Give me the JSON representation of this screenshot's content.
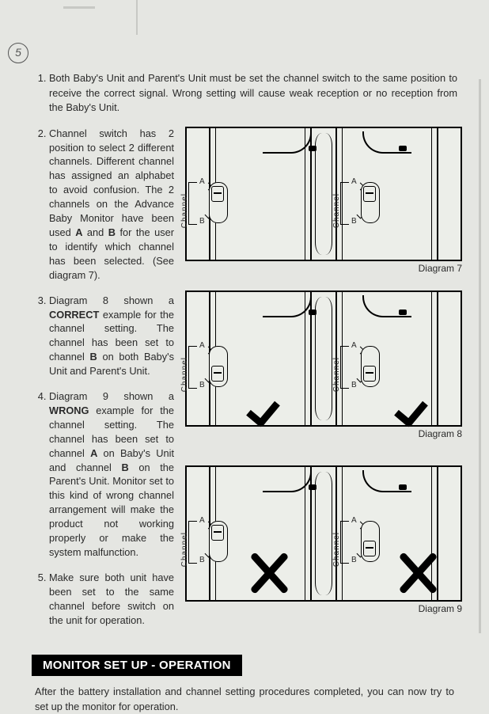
{
  "page_annotation": "5",
  "items": [
    {
      "text_parts": [
        "Both Baby's Unit and Parent's Unit must be set the channel switch to the same position to receive the correct signal. Wrong setting will cause weak reception or no reception from the Baby's Unit."
      ]
    },
    {
      "text_parts": [
        "Channel switch has 2 position to select 2 different channels. Different channel has assigned an alphabet to avoid confusion. The 2 channels on the Advance Baby Monitor have been used ",
        "A",
        " and ",
        "B",
        " for the user to identify which channel has been selected. (See diagram 7)."
      ]
    },
    {
      "text_parts": [
        "Diagram 8 shown a ",
        "CORRECT",
        " example for the channel setting. The channel has been set to channel ",
        "B",
        " on both Baby's Unit and Parent's Unit."
      ]
    },
    {
      "text_parts": [
        "Diagram 9 shown a ",
        "WRONG",
        " example for the channel setting. The channel has been set to channel ",
        "A",
        " on Baby's Unit and channel ",
        "B",
        " on the Parent's Unit. Monitor set to this kind of wrong channel arrangement will make the product not working properly or make the system malfunction."
      ]
    },
    {
      "text_parts": [
        "Make sure both unit have been set to the same channel before switch on the unit for operation."
      ]
    }
  ],
  "diagrams": {
    "d7": {
      "label": "Diagram 7",
      "channel_label": "Channel",
      "label_a": "A",
      "label_b": "B",
      "left_pos": "A",
      "right_pos": "A",
      "mark": "none"
    },
    "d8": {
      "label": "Diagram 8",
      "channel_label": "Channel",
      "label_a": "A",
      "label_b": "B",
      "left_pos": "B",
      "right_pos": "B",
      "mark": "check"
    },
    "d9": {
      "label": "Diagram 9",
      "channel_label": "Channel",
      "label_a": "A",
      "label_b": "B",
      "left_pos": "A",
      "right_pos": "B",
      "mark": "cross"
    }
  },
  "section_heading": "MONITOR SET UP - OPERATION",
  "section_body": "After the battery installation and channel setting procedures completed, you can now try to set up the monitor for operation.",
  "colors": {
    "bg": "#e5e6e2",
    "ink": "#000000",
    "text": "#2a2a2a"
  }
}
